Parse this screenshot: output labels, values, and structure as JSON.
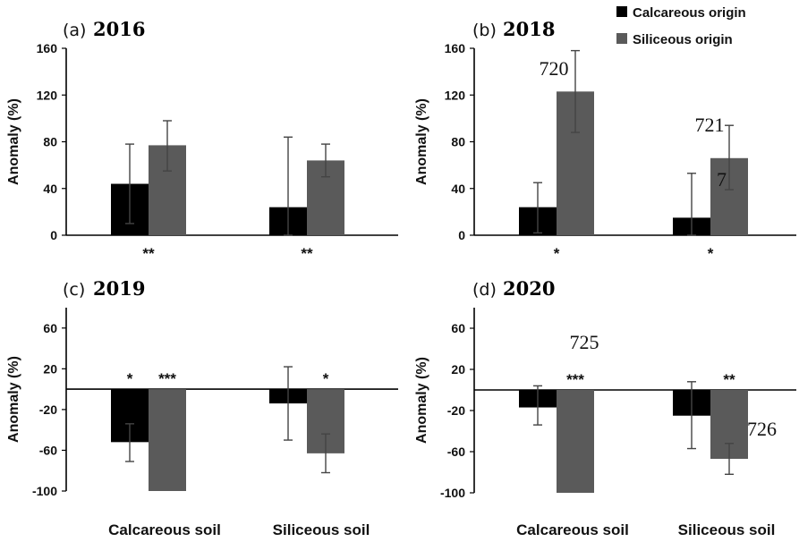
{
  "legend": [
    {
      "label": "Calcareous origin",
      "color": "#000000"
    },
    {
      "label": "Siliceous origin",
      "color": "#5a5a5a"
    }
  ],
  "x_categories": [
    "Calcareous soil",
    "Siliceous soil"
  ],
  "chart_data": [
    {
      "type": "bar",
      "panel_label": "(a)",
      "title": "2016",
      "ylabel": "Anomaly (%)",
      "ylim": [
        0,
        160
      ],
      "yticks": [
        0,
        40,
        80,
        120,
        160
      ],
      "categories": [
        "Calcareous soil",
        "Siliceous soil"
      ],
      "series": [
        {
          "name": "Calcareous origin",
          "values": [
            44,
            24
          ],
          "err_low": [
            10,
            0
          ],
          "err_high": [
            78,
            84
          ]
        },
        {
          "name": "Siliceous origin",
          "values": [
            77,
            64
          ],
          "err_low": [
            55,
            50
          ],
          "err_high": [
            98,
            78
          ]
        }
      ],
      "significance": [
        "**",
        "**"
      ],
      "significance_position": "below-axis",
      "annotations": []
    },
    {
      "type": "bar",
      "panel_label": "(b)",
      "title": "2018",
      "ylabel": "Anomaly (%)",
      "ylim": [
        0,
        160
      ],
      "yticks": [
        0,
        40,
        80,
        120,
        160
      ],
      "categories": [
        "Calcareous soil",
        "Siliceous soil"
      ],
      "series": [
        {
          "name": "Calcareous origin",
          "values": [
            24,
            15
          ],
          "err_low": [
            2,
            0
          ],
          "err_high": [
            45,
            53
          ]
        },
        {
          "name": "Siliceous origin",
          "values": [
            123,
            66
          ],
          "err_low": [
            88,
            39
          ],
          "err_high": [
            158,
            94
          ]
        }
      ],
      "significance": [
        "*",
        "*"
      ],
      "significance_position": "below-axis",
      "annotations": [
        {
          "text": "720",
          "category": 0,
          "series": 1,
          "offset": "above-left"
        },
        {
          "text": "721",
          "category": 1,
          "series": 1,
          "offset": "above-left"
        },
        {
          "text": "7",
          "category": 1,
          "series": 0,
          "offset": "right"
        }
      ]
    },
    {
      "type": "bar",
      "panel_label": "(c)",
      "title": "2019",
      "ylabel": "Anomaly (%)",
      "ylim": [
        -100,
        80
      ],
      "yticks": [
        -100,
        -60,
        -20,
        20,
        60
      ],
      "categories": [
        "Calcareous soil",
        "Siliceous soil"
      ],
      "series": [
        {
          "name": "Calcareous origin",
          "values": [
            -52,
            -14
          ],
          "err_low": [
            -71,
            -50
          ],
          "err_high": [
            -34,
            22
          ]
        },
        {
          "name": "Siliceous origin",
          "values": [
            -100,
            -63
          ],
          "err_low": [
            -100,
            -82
          ],
          "err_high": [
            -100,
            -44
          ]
        }
      ],
      "significance": [
        [
          "*",
          "***"
        ],
        [
          "",
          "*"
        ]
      ],
      "significance_position": "above-zero",
      "annotations": []
    },
    {
      "type": "bar",
      "panel_label": "(d)",
      "title": "2020",
      "ylabel": "Anomaly (%)",
      "ylim": [
        -100,
        80
      ],
      "yticks": [
        -100,
        -60,
        -20,
        20,
        60
      ],
      "categories": [
        "Calcareous soil",
        "Siliceous soil"
      ],
      "series": [
        {
          "name": "Calcareous origin",
          "values": [
            -17,
            -25
          ],
          "err_low": [
            -34,
            -57
          ],
          "err_high": [
            4,
            8
          ]
        },
        {
          "name": "Siliceous origin",
          "values": [
            -100,
            -67
          ],
          "err_low": [
            -100,
            -82
          ],
          "err_high": [
            -100,
            -52
          ]
        }
      ],
      "significance": [
        [
          "",
          "***"
        ],
        [
          "",
          "**"
        ]
      ],
      "significance_position": "above-zero",
      "annotations": [
        {
          "text": "725",
          "category": 0,
          "series": 1,
          "offset": "high"
        },
        {
          "text": "726",
          "category": 1,
          "series": 1,
          "offset": "right"
        }
      ]
    }
  ]
}
